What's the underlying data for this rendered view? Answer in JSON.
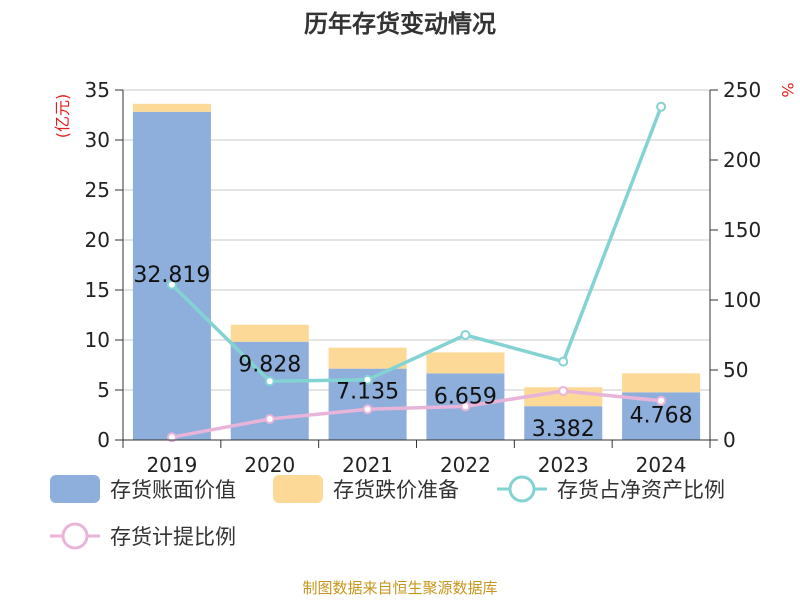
{
  "title": "历年存货变动情况",
  "source": "制图数据来自恒生聚源数据库",
  "chart_data": {
    "type": "bar",
    "stacked": true,
    "categories": [
      "2019",
      "2020",
      "2021",
      "2022",
      "2023",
      "2024"
    ],
    "y_left": {
      "unit": "(亿元)",
      "min": 0,
      "max": 35,
      "ticks": [
        0,
        5,
        10,
        15,
        20,
        25,
        30,
        35
      ]
    },
    "y_right": {
      "unit": "%",
      "min": 0,
      "max": 250,
      "ticks": [
        0,
        50,
        100,
        150,
        200,
        250
      ]
    },
    "grid": true,
    "legend_position": "bottom",
    "series": [
      {
        "name": "存货账面价值",
        "kind": "bar",
        "axis": "left",
        "color": "#8eaedb",
        "values": [
          32.819,
          9.828,
          7.135,
          6.659,
          3.382,
          4.768
        ],
        "labels": [
          "32.819",
          "9.828",
          "7.135",
          "6.659",
          "3.382",
          "4.768"
        ]
      },
      {
        "name": "存货跌价准备",
        "kind": "bar",
        "axis": "left",
        "color": "#fdd997",
        "values": [
          0.8,
          1.7,
          2.1,
          2.1,
          1.9,
          1.9
        ]
      },
      {
        "name": "存货占净资产比例",
        "kind": "line",
        "axis": "right",
        "color": "#84d3d3",
        "values": [
          111,
          42,
          43,
          75,
          56,
          238
        ]
      },
      {
        "name": "存货计提比例",
        "kind": "line",
        "axis": "right",
        "color": "#e8b4d9",
        "values": [
          2,
          15,
          22,
          24,
          35,
          28
        ]
      }
    ]
  }
}
